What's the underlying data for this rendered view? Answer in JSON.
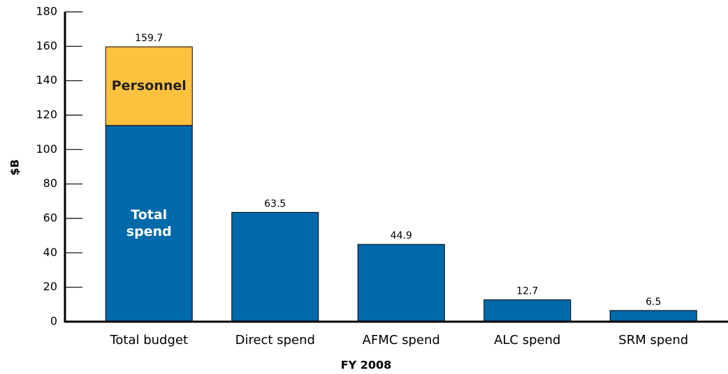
{
  "chart_data": {
    "type": "stacked_bar",
    "categories": [
      "Total budget",
      "Direct spend",
      "AFMC spend",
      "ALC spend",
      "SRM spend"
    ],
    "series": [
      {
        "name": "Total spend",
        "color": "#0069aa",
        "values": [
          114,
          63.5,
          44.9,
          12.7,
          6.5
        ]
      },
      {
        "name": "Personnel",
        "color": "#fdc13f",
        "values": [
          45.7,
          null,
          null,
          null,
          null
        ]
      }
    ],
    "total_labels": [
      "159.7",
      "63.5",
      "44.9",
      "12.7",
      "6.5"
    ],
    "segment_labels_series": [
      0,
      1
    ],
    "ylabel": "$B",
    "xlabel": "FY 2008",
    "ylim": [
      0,
      180
    ],
    "yticks": [
      0,
      20,
      40,
      60,
      80,
      100,
      120,
      140,
      160,
      180
    ]
  }
}
